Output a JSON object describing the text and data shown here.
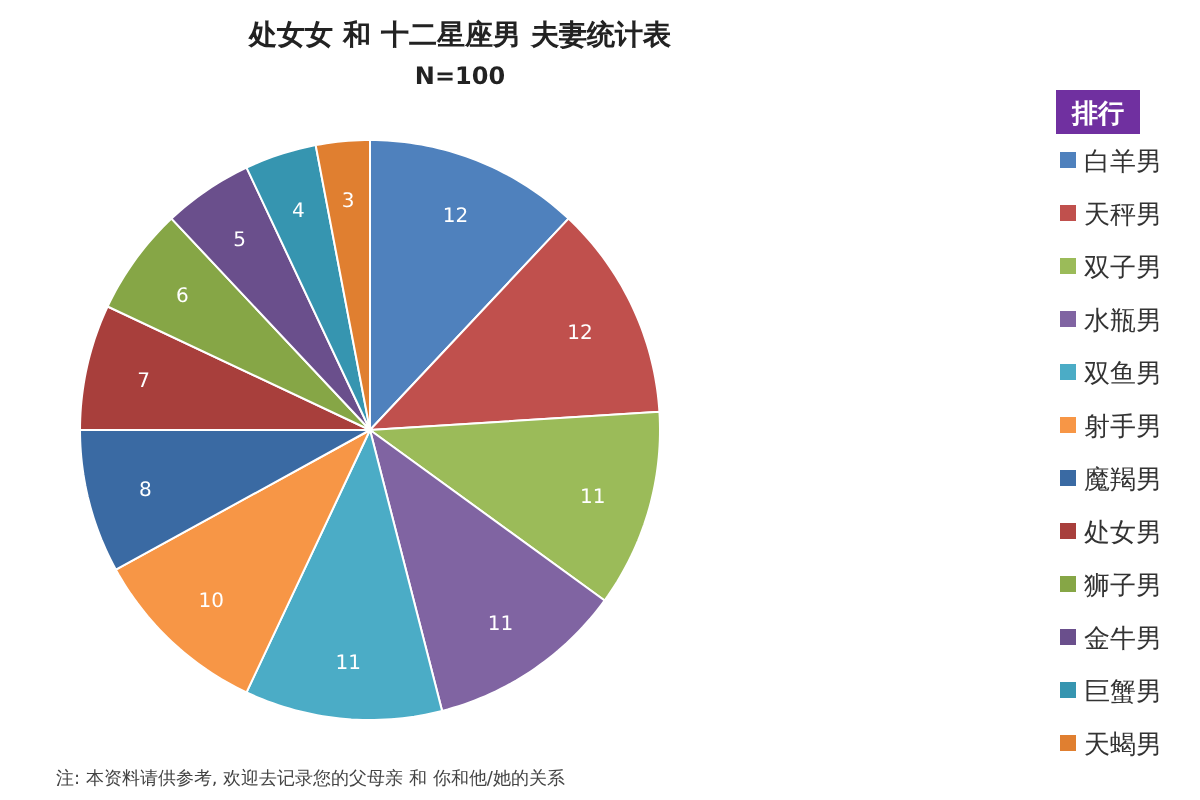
{
  "chart_data": {
    "type": "pie",
    "title": "处女女 和 十二星座男 夫妻统计表",
    "subtitle": "N=100",
    "legend_title": "排行",
    "legend": "right",
    "data_labels": true,
    "categories": [
      "白羊男",
      "天秤男",
      "双子男",
      "水瓶男",
      "双鱼男",
      "射手男",
      "魔羯男",
      "处女男",
      "狮子男",
      "金牛男",
      "巨蟹男",
      "天蝎男"
    ],
    "values": [
      12,
      12,
      11,
      11,
      11,
      10,
      8,
      7,
      6,
      5,
      4,
      3
    ],
    "colors": [
      "#4f81bd",
      "#c0504d",
      "#9bbb59",
      "#8064a2",
      "#4bacc6",
      "#f79646",
      "#3a6aa3",
      "#a83f3c",
      "#86a646",
      "#6a4f8c",
      "#3695b0",
      "#e07f30"
    ],
    "annotations": [
      "注: 本资料请供参考, 欢迎去记录您的父母亲 和 你和他/她的关系"
    ]
  }
}
